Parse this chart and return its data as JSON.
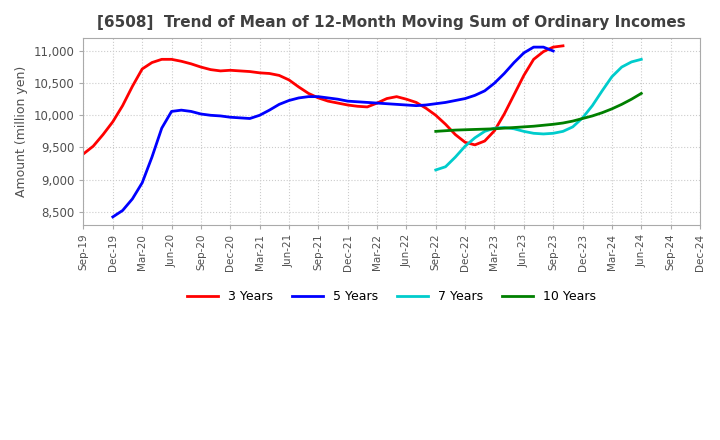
{
  "title": "[6508]  Trend of Mean of 12-Month Moving Sum of Ordinary Incomes",
  "ylabel": "Amount (million yen)",
  "ylim": [
    8300,
    11200
  ],
  "yticks": [
    8500,
    9000,
    9500,
    10000,
    10500,
    11000
  ],
  "background_color": "#ffffff",
  "title_color": "#404040",
  "x_labels": [
    "Sep-19",
    "Dec-19",
    "Mar-20",
    "Jun-20",
    "Sep-20",
    "Dec-20",
    "Mar-21",
    "Jun-21",
    "Sep-21",
    "Dec-21",
    "Mar-22",
    "Jun-22",
    "Sep-22",
    "Dec-22",
    "Mar-23",
    "Jun-23",
    "Sep-23",
    "Dec-23",
    "Mar-24",
    "Jun-24",
    "Sep-24",
    "Dec-24"
  ],
  "series": {
    "3 Years": {
      "color": "#ff0000",
      "start_label": "Sep-19",
      "values": [
        9400,
        9520,
        9700,
        9900,
        10150,
        10450,
        10720,
        10820,
        10870,
        10870,
        10840,
        10800,
        10750,
        10710,
        10690,
        10700,
        10690,
        10680,
        10660,
        10650,
        10620,
        10550,
        10440,
        10340,
        10270,
        10220,
        10190,
        10160,
        10140,
        10130,
        10190,
        10260,
        10290,
        10250,
        10200,
        10110,
        10000,
        9860,
        9700,
        9580,
        9540,
        9600,
        9760,
        10020,
        10320,
        10620,
        10870,
        10990,
        11060,
        11080
      ]
    },
    "5 Years": {
      "color": "#0000ff",
      "start_label": "Dec-19",
      "values": [
        8420,
        8520,
        8700,
        8950,
        9350,
        9800,
        10060,
        10080,
        10060,
        10020,
        10000,
        9990,
        9970,
        9960,
        9950,
        10000,
        10080,
        10170,
        10230,
        10270,
        10290,
        10290,
        10270,
        10250,
        10220,
        10210,
        10200,
        10190,
        10180,
        10170,
        10160,
        10150,
        10160,
        10180,
        10200,
        10230,
        10260,
        10310,
        10380,
        10500,
        10650,
        10820,
        10970,
        11060,
        11060,
        11000
      ]
    },
    "7 Years": {
      "color": "#00cccc",
      "start_label": "Sep-22",
      "values": [
        9150,
        9200,
        9350,
        9520,
        9650,
        9750,
        9800,
        9810,
        9790,
        9750,
        9720,
        9710,
        9720,
        9750,
        9820,
        9960,
        10150,
        10380,
        10600,
        10750,
        10830,
        10870
      ]
    },
    "10 Years": {
      "color": "#008000",
      "start_label": "Sep-22",
      "values": [
        9750,
        9760,
        9770,
        9775,
        9780,
        9785,
        9790,
        9800,
        9810,
        9820,
        9830,
        9845,
        9860,
        9880,
        9910,
        9950,
        9990,
        10040,
        10100,
        10170,
        10250,
        10340
      ]
    }
  },
  "legend_items": [
    "3 Years",
    "5 Years",
    "7 Years",
    "10 Years"
  ],
  "legend_colors": [
    "#ff0000",
    "#0000ff",
    "#00cccc",
    "#008000"
  ]
}
